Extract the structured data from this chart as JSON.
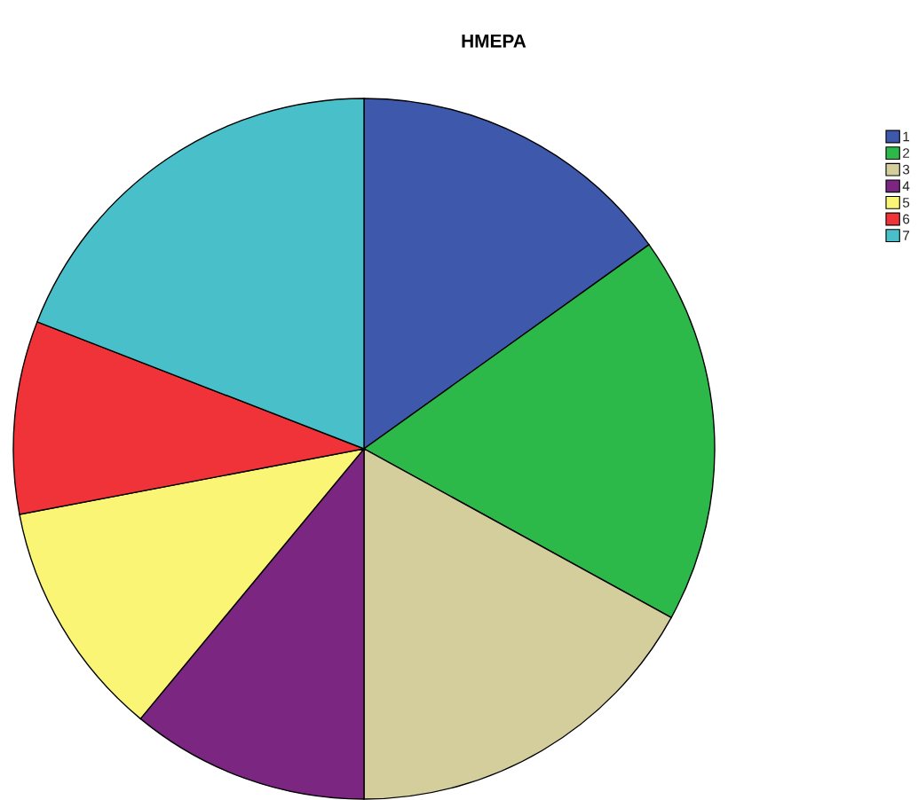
{
  "chart_data": {
    "type": "pie",
    "title": "ΗΜΕΡΑ",
    "categories": [
      "1",
      "2",
      "3",
      "4",
      "5",
      "6",
      "7"
    ],
    "values": [
      15.1,
      17.9,
      17.0,
      11.0,
      11.0,
      8.9,
      19.1
    ],
    "colors": [
      "#3e58ac",
      "#2db84a",
      "#d3ce9b",
      "#7b2681",
      "#fbf575",
      "#ef3338",
      "#48bfc9"
    ],
    "legend": "top right"
  }
}
